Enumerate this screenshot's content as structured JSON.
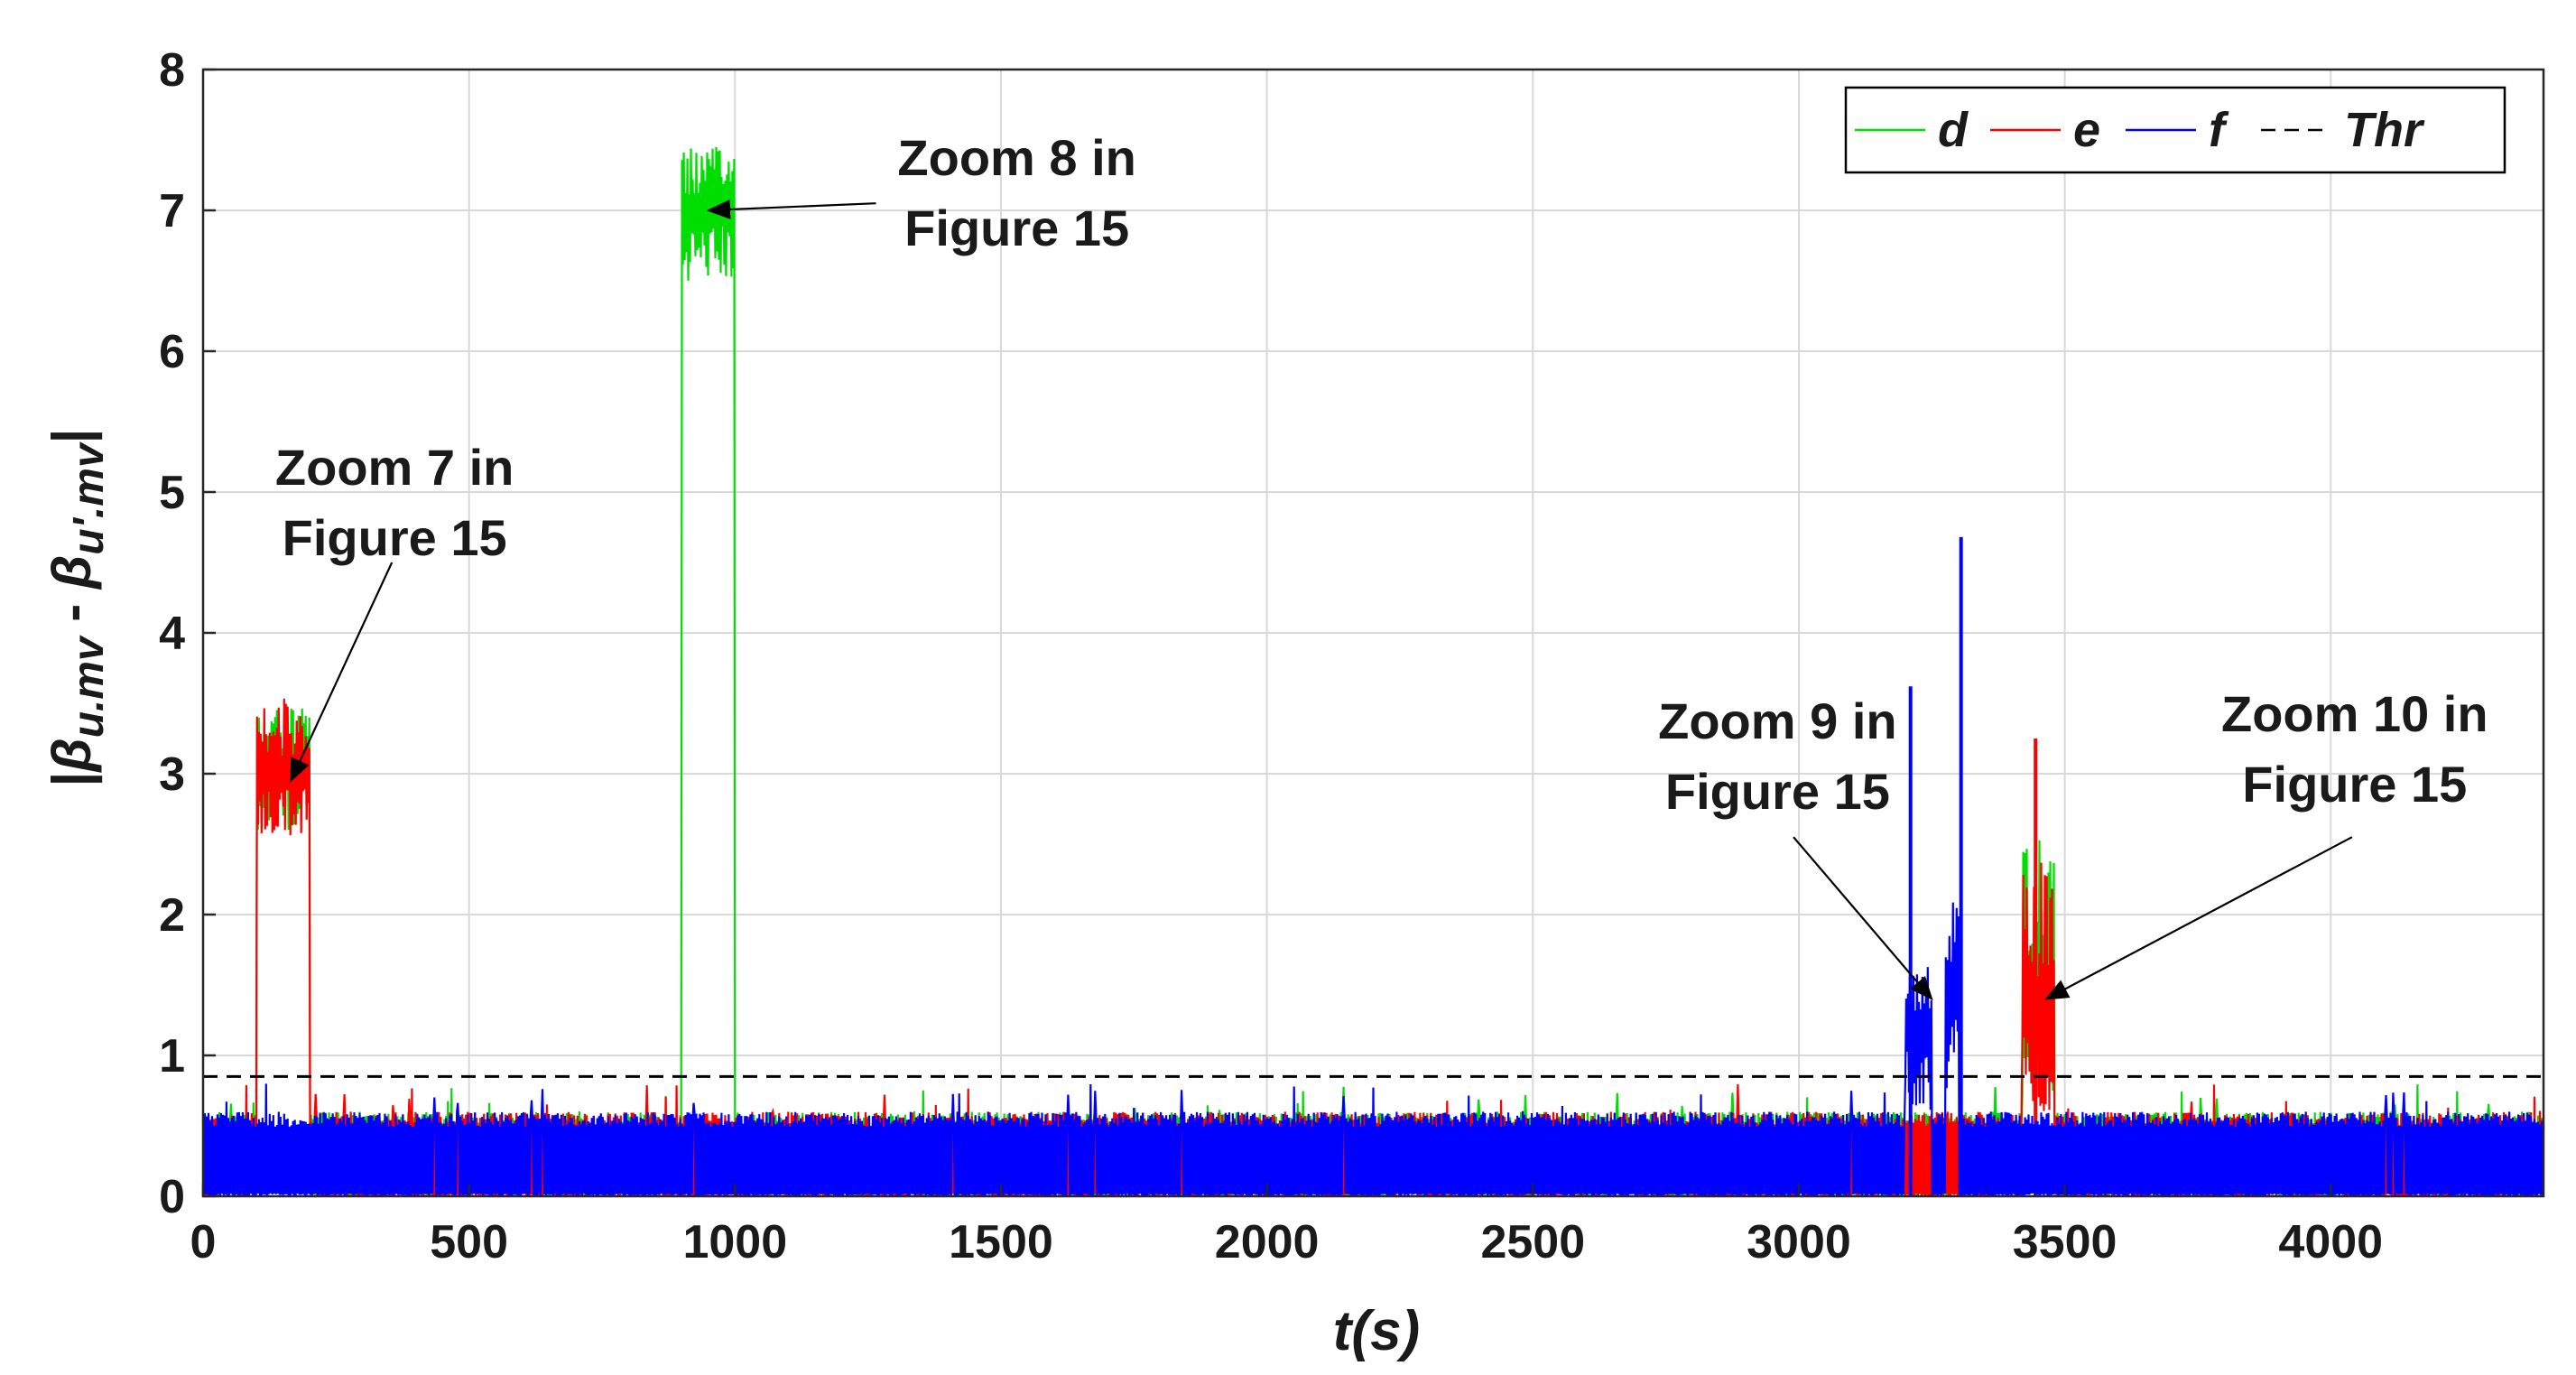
{
  "chart_data": {
    "type": "line",
    "xlabel": "t(s)",
    "ylabel": {
      "prefix": "|",
      "b1": "β",
      "s1": "u.mv",
      "mid": " - ",
      "b2": "β",
      "s2": "u'.mv",
      "suffix": "|"
    },
    "xlim": [
      0,
      4400
    ],
    "ylim": [
      0,
      8
    ],
    "grid": true,
    "x_ticks": [
      0,
      500,
      1000,
      1500,
      2000,
      2500,
      3000,
      3500,
      4000
    ],
    "y_ticks": [
      0,
      1,
      2,
      3,
      4,
      5,
      6,
      7,
      8
    ],
    "legend": {
      "position": "top-right",
      "entries": [
        "d",
        "e",
        "f",
        "Thr"
      ]
    },
    "colors": {
      "d": "#00dd00",
      "e": "#ff0000",
      "f": "#0000ff",
      "thr": "#000000",
      "grid": "#d9d9d9"
    },
    "noise_baseline": {
      "x_range": [
        0,
        4400
      ],
      "typical_peak": 0.6,
      "max_peak": 0.8
    },
    "threshold": 0.85,
    "series": [
      {
        "name": "d",
        "color": "#00dd00",
        "segments": [
          {
            "x_start": 100,
            "x_end": 200,
            "center": 3.0,
            "min": 2.6,
            "max": 3.5
          },
          {
            "x_start": 900,
            "x_end": 1000,
            "center": 7.0,
            "min": 6.5,
            "max": 7.45
          },
          {
            "x_start": 3420,
            "x_end": 3480,
            "center": 1.3,
            "min": 0.7,
            "max": 2.6
          }
        ],
        "spikes": []
      },
      {
        "name": "e",
        "color": "#ff0000",
        "segments": [
          {
            "x_start": 100,
            "x_end": 200,
            "center": 3.0,
            "min": 2.55,
            "max": 3.55
          },
          {
            "x_start": 3420,
            "x_end": 3480,
            "center": 1.3,
            "min": 0.6,
            "max": 2.45
          }
        ],
        "spikes": [
          {
            "x": 3445,
            "y": 3.25
          }
        ]
      },
      {
        "name": "f",
        "color": "#0000ff",
        "segments": [
          {
            "x_start": 3200,
            "x_end": 3250,
            "center": 1.2,
            "min": 0.6,
            "max": 1.75
          },
          {
            "x_start": 3275,
            "x_end": 3300,
            "center": 1.4,
            "min": 0.7,
            "max": 2.1
          }
        ],
        "spikes": [
          {
            "x": 3210,
            "y": 3.62
          },
          {
            "x": 3305,
            "y": 4.68
          }
        ]
      }
    ],
    "annotations": [
      {
        "lines": [
          "Zoom 7 in",
          "Figure 15"
        ],
        "text_x": 360,
        "text_y": 5.05,
        "arrow_from": [
          355,
          4.5
        ],
        "arrow_to": [
          165,
          2.95
        ]
      },
      {
        "lines": [
          "Zoom 8 in",
          "Figure 15"
        ],
        "text_x": 1530,
        "text_y": 7.25,
        "arrow_from": [
          1265,
          7.05
        ],
        "arrow_to": [
          950,
          7.0
        ]
      },
      {
        "lines": [
          "Zoom 9 in",
          "Figure 15"
        ],
        "text_x": 2960,
        "text_y": 3.25,
        "arrow_from": [
          2990,
          2.55
        ],
        "arrow_to": [
          3250,
          1.4
        ]
      },
      {
        "lines": [
          "Zoom 10 in",
          "Figure 15"
        ],
        "text_x": 4045,
        "text_y": 3.3,
        "arrow_from": [
          4040,
          2.55
        ],
        "arrow_to": [
          3465,
          1.4
        ]
      }
    ]
  }
}
